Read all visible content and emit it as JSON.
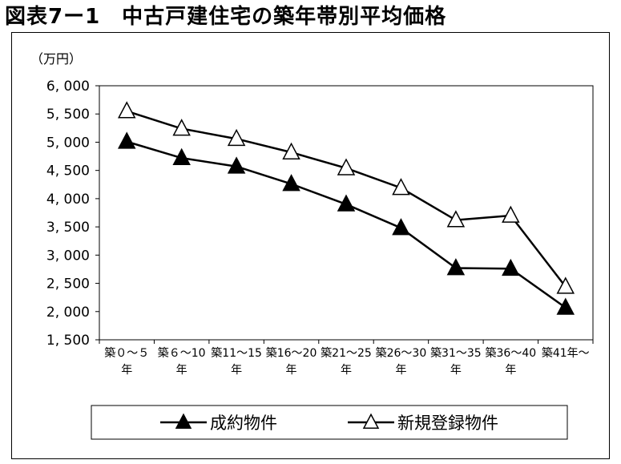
{
  "figure": {
    "title": "図表7ー1　中古戸建住宅の築年帯別平均価格"
  },
  "chart_data": {
    "type": "line",
    "title": "図表7ー1　中古戸建住宅の築年帯別平均価格",
    "ylabel": "（万円）",
    "xlabel": "",
    "ylim": [
      1500,
      6000
    ],
    "yticks": [
      "6, 000",
      "5, 500",
      "5, 000",
      "4, 500",
      "4, 000",
      "3, 500",
      "3, 000",
      "2, 500",
      "2, 000",
      "1, 500"
    ],
    "ytick_values": [
      6000,
      5500,
      5000,
      4500,
      4000,
      3500,
      3000,
      2500,
      2000,
      1500
    ],
    "categories": [
      [
        "築０～５",
        "年"
      ],
      [
        "築６～10",
        "年"
      ],
      [
        "築11～15",
        "年"
      ],
      [
        "築16～20",
        "年"
      ],
      [
        "築21～25",
        "年"
      ],
      [
        "築26～30",
        "年"
      ],
      [
        "築31～35",
        "年"
      ],
      [
        "築36～40",
        "年"
      ],
      [
        "築41年～",
        ""
      ]
    ],
    "series": [
      {
        "name": "成約物件",
        "marker": "filled-triangle",
        "color": "#000000",
        "values": [
          5010,
          4720,
          4570,
          4260,
          3900,
          3480,
          2770,
          2760,
          2070
        ]
      },
      {
        "name": "新規登録物件",
        "marker": "open-triangle",
        "color": "#000000",
        "values": [
          5550,
          5240,
          5060,
          4820,
          4540,
          4190,
          3620,
          3700,
          2440
        ]
      }
    ],
    "grid": false,
    "legend_position": "bottom"
  }
}
